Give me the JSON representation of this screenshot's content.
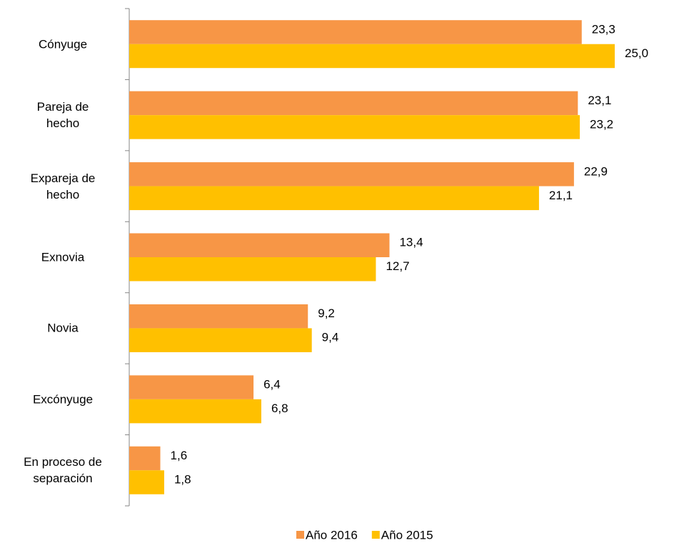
{
  "chart_data": {
    "type": "hbar",
    "categories": [
      "Cónyuge",
      "Pareja de\nhecho",
      "Expareja de\nhecho",
      "Exnovia",
      "Novia",
      "Excónyuge",
      "En proceso de\nseparación"
    ],
    "series": [
      {
        "name": "Año 2016",
        "color": "#f79646",
        "values": [
          23.3,
          23.1,
          22.9,
          13.4,
          9.2,
          6.4,
          1.6
        ],
        "value_labels": [
          "23,3",
          "23,1",
          "22,9",
          "13,4",
          "9,2",
          "6,4",
          "1,6"
        ]
      },
      {
        "name": "Año 2015",
        "color": "#ffc000",
        "values": [
          25.0,
          23.2,
          21.1,
          12.7,
          9.4,
          6.8,
          1.8
        ],
        "value_labels": [
          "25,0",
          "23,2",
          "21,1",
          "12,7",
          "9,4",
          "6,8",
          "1,8"
        ]
      }
    ]
  }
}
